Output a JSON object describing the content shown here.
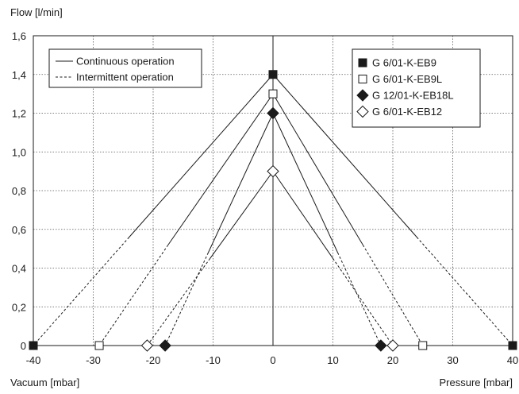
{
  "chart_data": {
    "type": "line",
    "title": "",
    "ylabel": "Flow [l/min]",
    "xlabel_left": "Vacuum [mbar]",
    "xlabel_right": "Pressure [mbar]",
    "xlim": [
      -40,
      40
    ],
    "ylim": [
      0,
      1.6
    ],
    "x_ticks": [
      {
        "value": -40,
        "label": "-40"
      },
      {
        "value": -30,
        "label": "-30"
      },
      {
        "value": -20,
        "label": "-20"
      },
      {
        "value": -10,
        "label": "-10"
      },
      {
        "value": 0,
        "label": "0"
      },
      {
        "value": 10,
        "label": "10"
      },
      {
        "value": 20,
        "label": "20"
      },
      {
        "value": 30,
        "label": "30"
      },
      {
        "value": 40,
        "label": "40"
      }
    ],
    "y_ticks": [
      {
        "value": 0,
        "label": "0"
      },
      {
        "value": 0.2,
        "label": "0,2"
      },
      {
        "value": 0.4,
        "label": "0,4"
      },
      {
        "value": 0.6,
        "label": "0,6"
      },
      {
        "value": 0.8,
        "label": "0,8"
      },
      {
        "value": 1.0,
        "label": "1,0"
      },
      {
        "value": 1.2,
        "label": "1,2"
      },
      {
        "value": 1.4,
        "label": "1,4"
      },
      {
        "value": 1.6,
        "label": "1,6"
      }
    ],
    "grid": true,
    "line_legend": [
      {
        "label": "Continuous operation",
        "style": "solid"
      },
      {
        "label": "Intermittent operation",
        "style": "dashed"
      }
    ],
    "series": [
      {
        "name": "G 6/01-K-EB9",
        "marker": "square-filled",
        "peak": [
          0,
          1.4
        ],
        "vacuum_end": [
          -40,
          0
        ],
        "pressure_end": [
          40,
          0
        ],
        "continuous_left": [
          -24,
          0.56
        ],
        "continuous_right": [
          24,
          0.56
        ]
      },
      {
        "name": "G 6/01-K-EB9L",
        "marker": "square-open",
        "peak": [
          0,
          1.3
        ],
        "vacuum_end": [
          -29,
          0
        ],
        "pressure_end": [
          25,
          0
        ],
        "continuous_left": [
          -17.5,
          0.52
        ],
        "continuous_right": [
          15,
          0.52
        ]
      },
      {
        "name": "G 12/01-K-EB18L",
        "marker": "diamond-filled",
        "peak": [
          0,
          1.2
        ],
        "vacuum_end": [
          -18,
          0
        ],
        "pressure_end": [
          18,
          0
        ],
        "continuous_left": [
          -10.8,
          0.48
        ],
        "continuous_right": [
          10.8,
          0.48
        ]
      },
      {
        "name": "G 6/01-K-EB12",
        "marker": "diamond-open",
        "peak": [
          0,
          0.9
        ],
        "vacuum_end": [
          -21,
          0
        ],
        "pressure_end": [
          20,
          0
        ],
        "continuous_left": [
          -10.5,
          0.45
        ],
        "continuous_right": [
          10,
          0.45
        ]
      }
    ],
    "legend_placement": "top-right",
    "line_legend_placement": "top-left"
  }
}
